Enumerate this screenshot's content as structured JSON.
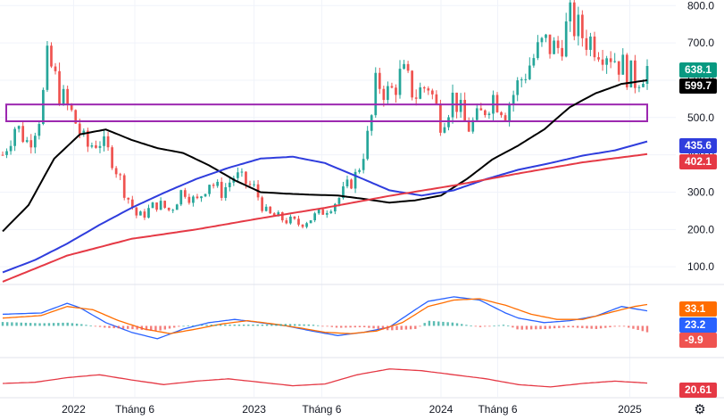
{
  "chart_data": [
    {
      "type": "candlestick",
      "title": "",
      "x_labels": [
        "2022",
        "Tháng 6",
        "2023",
        "Tháng 6",
        "2024",
        "Tháng 6",
        "2025"
      ],
      "y_ticks": [
        "100.0",
        "200.0",
        "300.0",
        "400.0",
        "500.0",
        "600.0",
        "700.0",
        "800.0"
      ],
      "ylim": [
        55,
        815
      ],
      "grid": true,
      "series": [
        {
          "key": "ma_short",
          "color": "#000000",
          "last": "599.7",
          "x": [
            0,
            4,
            8,
            12,
            16,
            20,
            24,
            28,
            32,
            36,
            40,
            44,
            48,
            52,
            56,
            60,
            64,
            68,
            72,
            76,
            80,
            84,
            88,
            92,
            96,
            100
          ],
          "values": [
            195,
            265,
            390,
            455,
            468,
            440,
            418,
            405,
            372,
            332,
            300,
            296,
            293,
            291,
            282,
            272,
            278,
            291,
            335,
            388,
            425,
            468,
            528,
            565,
            590,
            600
          ]
        },
        {
          "key": "ma_mid",
          "color": "#2f3ddd",
          "last": "435.6",
          "x": [
            0,
            5,
            10,
            15,
            20,
            25,
            30,
            35,
            40,
            45,
            50,
            55,
            60,
            65,
            70,
            75,
            80,
            85,
            90,
            95,
            100
          ],
          "values": [
            85,
            118,
            162,
            212,
            258,
            298,
            335,
            365,
            390,
            395,
            378,
            342,
            305,
            291,
            305,
            335,
            360,
            378,
            398,
            412,
            436
          ]
        },
        {
          "key": "ma_long",
          "color": "#e53945",
          "last": "402.1",
          "x": [
            0,
            10,
            20,
            30,
            40,
            50,
            60,
            70,
            80,
            90,
            100
          ],
          "values": [
            60,
            130,
            175,
            200,
            230,
            258,
            290,
            318,
            350,
            380,
            402
          ]
        },
        {
          "key": "last_price",
          "color": "#089981",
          "last": "638.1"
        }
      ],
      "ohlc_anchor": {
        "x": [
          0,
          2,
          4,
          6,
          7,
          9,
          11,
          13,
          15,
          17,
          19,
          21,
          24,
          26,
          28,
          30,
          32,
          34,
          36,
          39,
          41,
          43,
          46,
          49,
          52,
          55,
          57,
          58,
          60,
          62,
          64,
          66,
          68,
          70,
          72,
          74,
          76,
          78,
          80,
          82,
          84,
          86,
          88,
          90,
          92,
          94,
          95,
          96,
          98,
          100
        ],
        "close": [
          400,
          480,
          430,
          520,
          660,
          560,
          500,
          420,
          440,
          390,
          300,
          230,
          270,
          250,
          310,
          270,
          330,
          300,
          345,
          310,
          240,
          230,
          215,
          240,
          280,
          350,
          470,
          600,
          560,
          620,
          560,
          590,
          490,
          560,
          470,
          500,
          560,
          520,
          590,
          650,
          700,
          680,
          760,
          720,
          700,
          680,
          660,
          640,
          600,
          638
        ]
      },
      "box": {
        "label": "",
        "x": [
          0,
          100
        ],
        "y": [
          490,
          535
        ],
        "color": "#9c27b0"
      }
    },
    {
      "type": "macd",
      "ylim": [
        -45,
        60
      ],
      "series": [
        {
          "key": "macd_line",
          "color": "#2962ff",
          "last": "23.2",
          "x": [
            0,
            6,
            10,
            12,
            16,
            20,
            24,
            28,
            32,
            36,
            40,
            44,
            48,
            52,
            56,
            60,
            64,
            66,
            70,
            74,
            78,
            80,
            84,
            88,
            92,
            96,
            100
          ],
          "values": [
            18,
            20,
            35,
            28,
            5,
            -10,
            -20,
            -5,
            5,
            10,
            5,
            0,
            -8,
            -15,
            -10,
            -2,
            25,
            38,
            45,
            40,
            20,
            12,
            5,
            8,
            15,
            30,
            23.2
          ]
        },
        {
          "key": "signal_line",
          "color": "#ff6d00",
          "last": "33.1",
          "x": [
            0,
            6,
            10,
            14,
            18,
            22,
            26,
            30,
            34,
            38,
            42,
            46,
            50,
            54,
            58,
            62,
            66,
            70,
            74,
            78,
            82,
            86,
            90,
            94,
            98,
            100
          ],
          "values": [
            12,
            16,
            30,
            25,
            8,
            -5,
            -12,
            -5,
            3,
            8,
            3,
            -3,
            -10,
            -12,
            -8,
            5,
            30,
            40,
            42,
            32,
            18,
            10,
            10,
            20,
            30,
            33.1
          ]
        },
        {
          "key": "histogram",
          "color_pos": "#26a69a",
          "color_neg": "#ef5350",
          "last": "-9.9",
          "x": [
            0,
            6,
            10,
            12,
            16,
            20,
            24,
            28,
            32,
            36,
            40,
            44,
            48,
            52,
            56,
            60,
            64,
            66,
            70,
            74,
            78,
            80,
            84,
            88,
            92,
            96,
            100
          ],
          "values": [
            6,
            4,
            5,
            3,
            -3,
            -5,
            -8,
            0,
            2,
            2,
            2,
            3,
            2,
            -3,
            -2,
            -7,
            -5,
            8,
            5,
            -2,
            2,
            -6,
            -5,
            -2,
            -5,
            0,
            -9.9
          ]
        }
      ]
    },
    {
      "type": "line",
      "ylim": [
        0,
        60
      ],
      "series": [
        {
          "key": "indicator",
          "color": "#e53945",
          "last": "20.61",
          "x": [
            0,
            5,
            10,
            15,
            20,
            25,
            30,
            35,
            40,
            45,
            50,
            55,
            60,
            65,
            70,
            75,
            80,
            85,
            90,
            95,
            100
          ],
          "values": [
            20,
            22,
            30,
            35,
            26,
            18,
            24,
            28,
            22,
            16,
            19,
            35,
            45,
            42,
            35,
            28,
            18,
            14,
            20,
            24,
            20.61
          ]
        }
      ]
    }
  ],
  "colors": {
    "up": "#26a69a",
    "down": "#ef5350",
    "grid": "#f0f3fa",
    "separator": "#e0e3eb"
  },
  "settings_icon": "gear-icon",
  "settings_glyph": "⚙"
}
